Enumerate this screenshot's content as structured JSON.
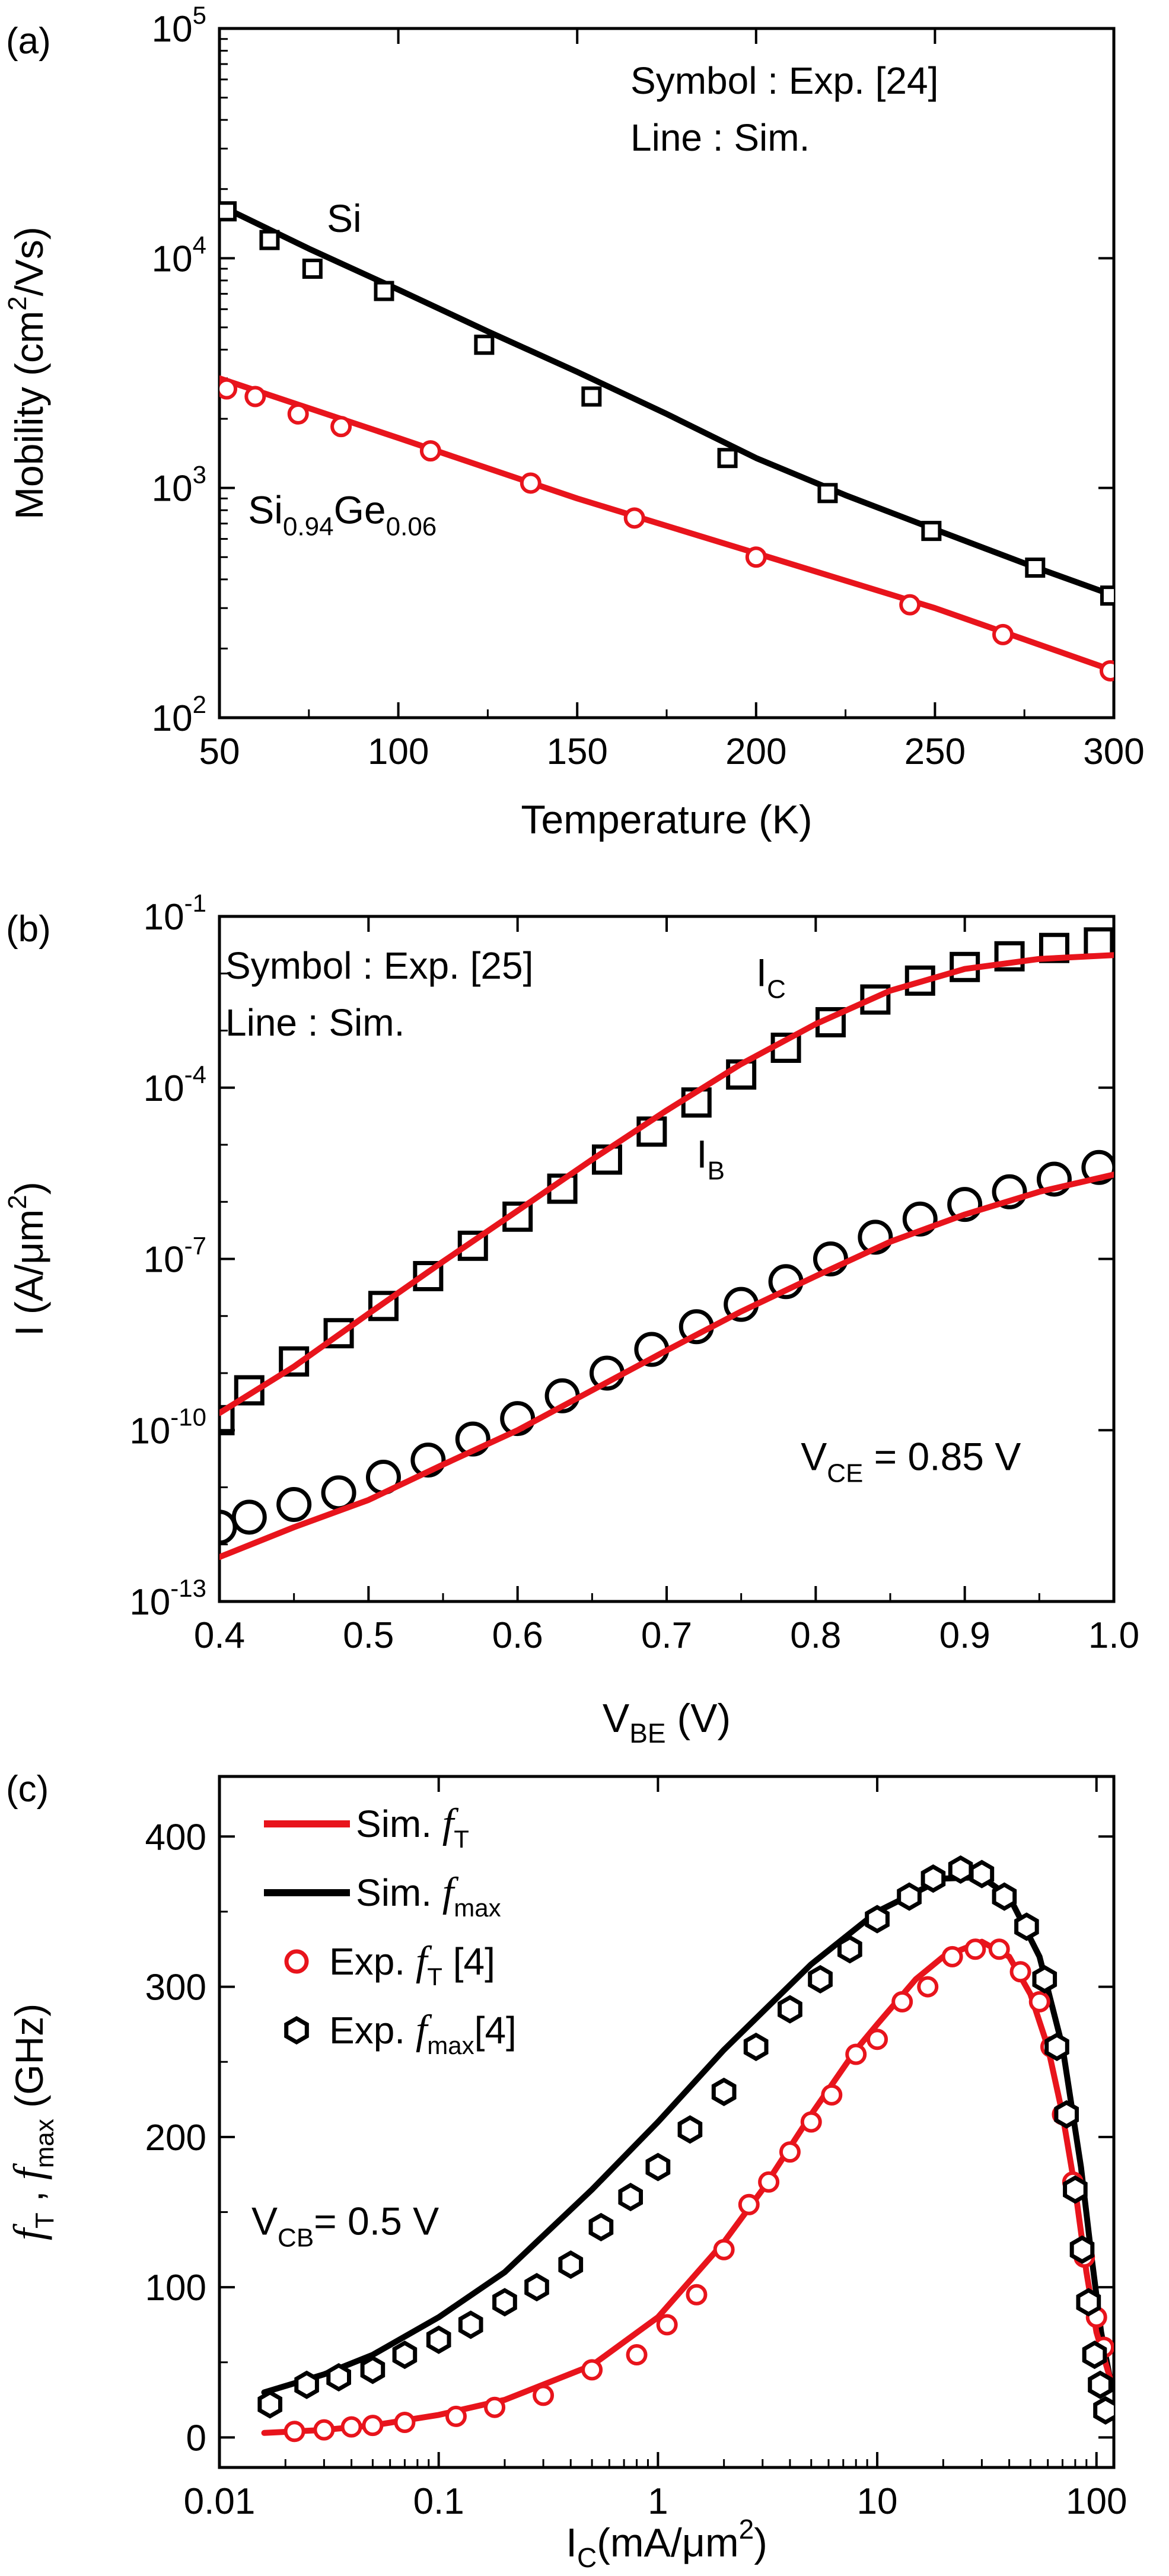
{
  "chart_data": [
    {
      "panel_label": "(a)",
      "type": "line",
      "yscale": "log",
      "xlabel": "Temperature (K)",
      "ylabel": {
        "main": "Mobility (cm",
        "sup": "2",
        "tail": "/Vs)"
      },
      "xlim": [
        50,
        300
      ],
      "ylim": [
        100,
        100000
      ],
      "xticks": [
        {
          "v": 50,
          "label": "50"
        },
        {
          "v": 100,
          "label": "100"
        },
        {
          "v": 150,
          "label": "150"
        },
        {
          "v": 200,
          "label": "200"
        },
        {
          "v": 250,
          "label": "250"
        },
        {
          "v": 300,
          "label": "300"
        }
      ],
      "yticks": [
        {
          "v": 100,
          "base": "10",
          "exp": "2"
        },
        {
          "v": 1000,
          "base": "10",
          "exp": "3"
        },
        {
          "v": 10000,
          "base": "10",
          "exp": "4"
        },
        {
          "v": 100000,
          "base": "10",
          "exp": "5"
        }
      ],
      "legend_text": [
        "Symbol : Exp. [24]",
        "Line       : Sim."
      ],
      "annotations": [
        {
          "id": "si",
          "parts": [
            [
              "Si",
              ""
            ]
          ],
          "x": 80,
          "y": 13000
        },
        {
          "id": "sige",
          "parts": [
            [
              "Si",
              ""
            ],
            [
              "0.94",
              "sub"
            ],
            [
              "Ge",
              ""
            ],
            [
              "0.06",
              "sub"
            ]
          ],
          "x": 58,
          "y": 700
        }
      ],
      "series": [
        {
          "name": "Si Sim.",
          "kind": "line",
          "color": "#000000",
          "x": [
            50,
            75,
            100,
            125,
            150,
            175,
            200,
            225,
            250,
            275,
            300
          ],
          "y": [
            17000,
            11000,
            7300,
            4800,
            3200,
            2100,
            1350,
            930,
            660,
            470,
            340
          ]
        },
        {
          "name": "Si Exp. [24]",
          "kind": "square",
          "color": "#000000",
          "x": [
            52,
            64,
            76,
            96,
            124,
            154,
            192,
            220,
            249,
            278,
            299
          ],
          "y": [
            16000,
            12000,
            9000,
            7200,
            4200,
            2500,
            1350,
            950,
            650,
            450,
            340
          ]
        },
        {
          "name": "Si0.94Ge0.06 Sim.",
          "kind": "line",
          "color": "#e8141c",
          "x": [
            50,
            100,
            150,
            200,
            250,
            300
          ],
          "y": [
            3000,
            1650,
            900,
            520,
            300,
            160
          ]
        },
        {
          "name": "Si0.94Ge0.06 Exp. [24]",
          "kind": "circle",
          "color": "#e8141c",
          "x": [
            52,
            60,
            72,
            84,
            109,
            137,
            166,
            200,
            243,
            269,
            299
          ],
          "y": [
            2700,
            2500,
            2100,
            1850,
            1450,
            1050,
            740,
            500,
            310,
            230,
            160
          ]
        }
      ]
    },
    {
      "panel_label": "(b)",
      "type": "line",
      "yscale": "log",
      "xlabel": {
        "main": "V",
        "sub": "BE",
        "tail": " (V)"
      },
      "ylabel": {
        "main": "I (A/μm",
        "sup": "2",
        "tail": ")"
      },
      "xlim": [
        0.4,
        1.0
      ],
      "ylim": [
        1e-13,
        0.1
      ],
      "xticks": [
        {
          "v": 0.4,
          "label": "0.4"
        },
        {
          "v": 0.5,
          "label": "0.5"
        },
        {
          "v": 0.6,
          "label": "0.6"
        },
        {
          "v": 0.7,
          "label": "0.7"
        },
        {
          "v": 0.8,
          "label": "0.8"
        },
        {
          "v": 0.9,
          "label": "0.9"
        },
        {
          "v": 1.0,
          "label": "1.0"
        }
      ],
      "yticks": [
        {
          "v": 1e-13,
          "base": "10",
          "exp": "-13"
        },
        {
          "v": 1e-10,
          "base": "10",
          "exp": "-10"
        },
        {
          "v": 1e-07,
          "base": "10",
          "exp": "-7"
        },
        {
          "v": 0.0001,
          "base": "10",
          "exp": "-4"
        },
        {
          "v": 0.1,
          "base": "10",
          "exp": "-1"
        }
      ],
      "legend_text": [
        "Symbol : Exp. [25]",
        "Line : Sim."
      ],
      "annotations": [
        {
          "id": "ic",
          "parts": [
            [
              "I",
              ""
            ],
            [
              "C",
              "sub"
            ]
          ],
          "x": 0.76,
          "y": 0.006
        },
        {
          "id": "ib",
          "parts": [
            [
              "I",
              ""
            ],
            [
              "B",
              "sub"
            ]
          ],
          "x": 0.72,
          "y": 4e-06
        },
        {
          "id": "vce",
          "parts": [
            [
              "V",
              ""
            ],
            [
              "CE",
              "sub"
            ],
            [
              " = 0.85 V",
              ""
            ]
          ],
          "x": 0.79,
          "y": 2e-11
        }
      ],
      "series": [
        {
          "name": "I_C Sim.",
          "kind": "line",
          "color": "#e8141c",
          "x": [
            0.4,
            0.45,
            0.5,
            0.55,
            0.6,
            0.65,
            0.7,
            0.75,
            0.8,
            0.85,
            0.9,
            0.95,
            1.0
          ],
          "y": [
            2e-10,
            1.3e-09,
            1.1e-08,
            9e-08,
            7e-07,
            5.5e-06,
            4e-05,
            0.00026,
            0.0013,
            0.005,
            0.012,
            0.018,
            0.021
          ]
        },
        {
          "name": "I_C Exp. [25]",
          "kind": "square",
          "color": "#000000",
          "x": [
            0.4,
            0.42,
            0.45,
            0.48,
            0.51,
            0.54,
            0.57,
            0.6,
            0.63,
            0.66,
            0.69,
            0.72,
            0.75,
            0.78,
            0.81,
            0.84,
            0.87,
            0.9,
            0.93,
            0.96,
            0.99
          ],
          "y": [
            1.5e-10,
            5e-10,
            1.6e-09,
            5e-09,
            1.5e-08,
            5e-08,
            1.7e-07,
            5.5e-07,
            1.7e-06,
            5.5e-06,
            1.7e-05,
            5.5e-05,
            0.00017,
            0.0005,
            0.0014,
            0.0035,
            0.0075,
            0.013,
            0.02,
            0.028,
            0.035
          ]
        },
        {
          "name": "I_B Sim.",
          "kind": "line",
          "color": "#e8141c",
          "x": [
            0.4,
            0.45,
            0.5,
            0.55,
            0.6,
            0.65,
            0.7,
            0.75,
            0.8,
            0.85,
            0.9,
            0.95,
            1.0
          ],
          "y": [
            6e-13,
            2e-12,
            6e-12,
            2.5e-11,
            1e-10,
            5e-10,
            2.5e-09,
            1.2e-08,
            5e-08,
            2e-07,
            6e-07,
            1.5e-06,
            3e-06
          ]
        },
        {
          "name": "I_B Exp. [25]",
          "kind": "circle",
          "color": "#000000",
          "x": [
            0.4,
            0.42,
            0.45,
            0.48,
            0.51,
            0.54,
            0.57,
            0.6,
            0.63,
            0.66,
            0.69,
            0.72,
            0.75,
            0.78,
            0.81,
            0.84,
            0.87,
            0.9,
            0.93,
            0.96,
            0.99
          ],
          "y": [
            2e-12,
            3e-12,
            5e-12,
            8e-12,
            1.5e-11,
            3e-11,
            7e-11,
            1.6e-10,
            4e-10,
            1e-09,
            2.6e-09,
            6.5e-09,
            1.6e-08,
            4e-08,
            1e-07,
            2.4e-07,
            5e-07,
            9e-07,
            1.5e-06,
            2.5e-06,
            4e-06
          ]
        }
      ]
    },
    {
      "panel_label": "(c)",
      "type": "line",
      "xscale": "log",
      "xlabel": {
        "main": "I",
        "sub": "C",
        "tail": "(mA/μm",
        "sup": "2",
        "tail2": ")"
      },
      "ylabel": {
        "f1": "f",
        "s1": "T",
        "mid": " , ",
        "f2": "f",
        "s2": "max",
        "tail": " (GHz)"
      },
      "xlim": [
        0.01,
        120
      ],
      "ylim": [
        -20,
        440
      ],
      "xticks": [
        {
          "v": 0.01,
          "label": "0.01"
        },
        {
          "v": 0.1,
          "label": "0.1"
        },
        {
          "v": 1,
          "label": "1"
        },
        {
          "v": 10,
          "label": "10"
        },
        {
          "v": 100,
          "label": "100"
        }
      ],
      "yticks": [
        {
          "v": 0,
          "label": "0"
        },
        {
          "v": 100,
          "label": "100"
        },
        {
          "v": 200,
          "label": "200"
        },
        {
          "v": 300,
          "label": "300"
        },
        {
          "v": 400,
          "label": "400"
        }
      ],
      "legend": [
        {
          "kind": "line",
          "color": "#e8141c",
          "pre": "Sim. ",
          "f": "f",
          "sub": "T",
          "post": ""
        },
        {
          "kind": "line",
          "color": "#000000",
          "pre": "Sim. ",
          "f": "f",
          "sub": "max",
          "post": ""
        },
        {
          "kind": "circle",
          "color": "#e8141c",
          "pre": "Exp. ",
          "f": "f",
          "sub": "T",
          "post": "  [4]"
        },
        {
          "kind": "hexagon",
          "color": "#000000",
          "pre": "Exp. ",
          "f": "f",
          "sub": "max",
          "post": "[4]"
        }
      ],
      "annotations": [
        {
          "id": "vcb",
          "parts": [
            [
              "V",
              ""
            ],
            [
              "CB",
              "sub"
            ],
            [
              "= 0.5 V",
              ""
            ]
          ],
          "x": 0.014,
          "y": 135
        }
      ],
      "series": [
        {
          "name": "Sim. fmax",
          "kind": "line",
          "color": "#000000",
          "x": [
            0.016,
            0.03,
            0.05,
            0.1,
            0.2,
            0.5,
            1,
            2,
            5,
            10,
            20,
            30,
            40,
            55,
            70,
            85,
            95,
            105,
            115
          ],
          "y": [
            30,
            42,
            55,
            80,
            110,
            165,
            210,
            258,
            315,
            350,
            372,
            373,
            360,
            320,
            260,
            180,
            120,
            70,
            40
          ]
        },
        {
          "name": "Sim. fT",
          "kind": "line",
          "color": "#e8141c",
          "x": [
            0.016,
            0.03,
            0.05,
            0.1,
            0.2,
            0.5,
            1,
            2,
            3,
            5,
            8,
            10,
            15,
            20,
            30,
            40,
            50,
            60,
            70,
            80,
            90,
            100,
            115
          ],
          "y": [
            3,
            5,
            8,
            15,
            25,
            48,
            80,
            130,
            165,
            215,
            258,
            275,
            305,
            320,
            330,
            320,
            295,
            260,
            215,
            165,
            110,
            70,
            40
          ]
        },
        {
          "name": "Exp. fT [4]",
          "kind": "circle",
          "color": "#e8141c",
          "x": [
            0.022,
            0.03,
            0.04,
            0.05,
            0.07,
            0.12,
            0.18,
            0.3,
            0.5,
            0.8,
            1.1,
            1.5,
            2,
            2.6,
            3.2,
            4,
            5,
            6.2,
            8,
            10,
            13,
            17,
            22,
            28,
            36,
            45,
            55,
            62,
            70,
            78,
            88,
            100,
            108
          ],
          "y": [
            4,
            5,
            7,
            8,
            10,
            14,
            20,
            28,
            45,
            55,
            75,
            95,
            125,
            155,
            170,
            190,
            210,
            228,
            255,
            265,
            290,
            300,
            320,
            325,
            325,
            310,
            290,
            260,
            215,
            170,
            120,
            80,
            60
          ]
        },
        {
          "name": "Exp. fmax [4]",
          "kind": "hexagon",
          "color": "#000000",
          "x": [
            0.017,
            0.025,
            0.035,
            0.05,
            0.07,
            0.1,
            0.14,
            0.2,
            0.28,
            0.4,
            0.55,
            0.75,
            1.0,
            1.4,
            2.0,
            2.8,
            4.0,
            5.5,
            7.5,
            10,
            14,
            18,
            24,
            30,
            38,
            48,
            58,
            66,
            73,
            80,
            86,
            92,
            98,
            104,
            110
          ],
          "y": [
            22,
            35,
            40,
            45,
            55,
            65,
            75,
            90,
            100,
            115,
            140,
            160,
            180,
            205,
            230,
            260,
            285,
            305,
            325,
            345,
            360,
            372,
            378,
            375,
            360,
            340,
            305,
            260,
            215,
            165,
            125,
            90,
            55,
            35,
            18
          ]
        }
      ]
    }
  ]
}
